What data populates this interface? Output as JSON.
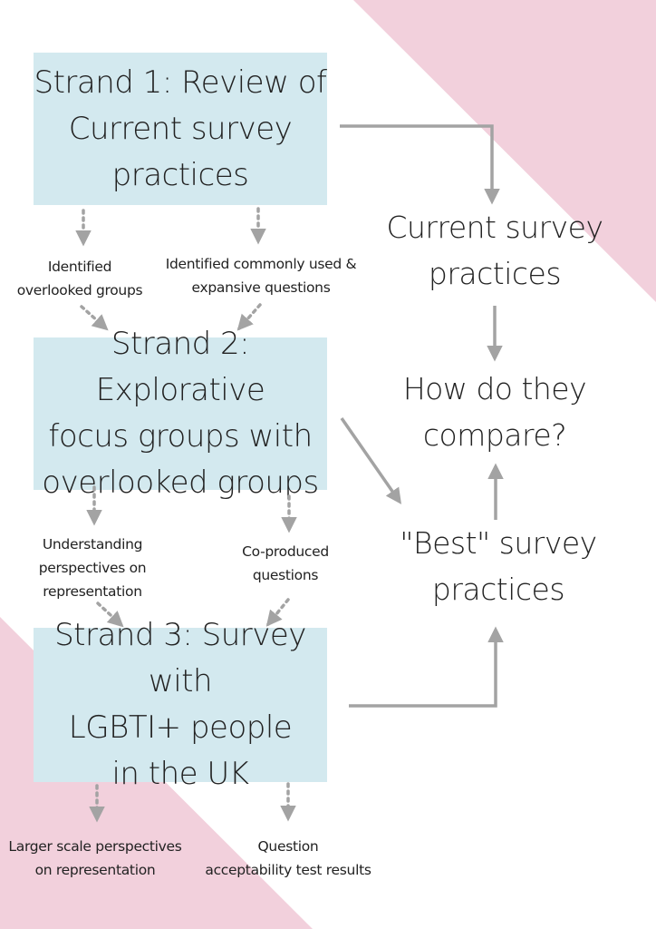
{
  "colors": {
    "pink": "#f2d0dc",
    "box": "#d3e9ef",
    "arrow": "#a3a3a3"
  },
  "strands": [
    {
      "label": "Strand 1: Review of\nCurrent survey\npractices"
    },
    {
      "label": "Strand 2: Explorative\nfocus groups with\noverlooked groups"
    },
    {
      "label": "Strand 3: Survey with\nLGBTI+ people\nin the UK"
    }
  ],
  "outcomes": {
    "current": "Current survey\npractices",
    "compare": "How do they\ncompare?",
    "best": "\"Best\" survey\npractices"
  },
  "annotations": {
    "s1_left": "Identified\noverlooked groups",
    "s1_right": "Identified  commonly used &\nexpansive questions",
    "s2_left": "Understanding\nperspectives on\nrepresentation",
    "s2_right": "Co-produced\nquestions",
    "s3_left": "Larger scale perspectives\non representation",
    "s3_right": "Question\nacceptability test results"
  }
}
